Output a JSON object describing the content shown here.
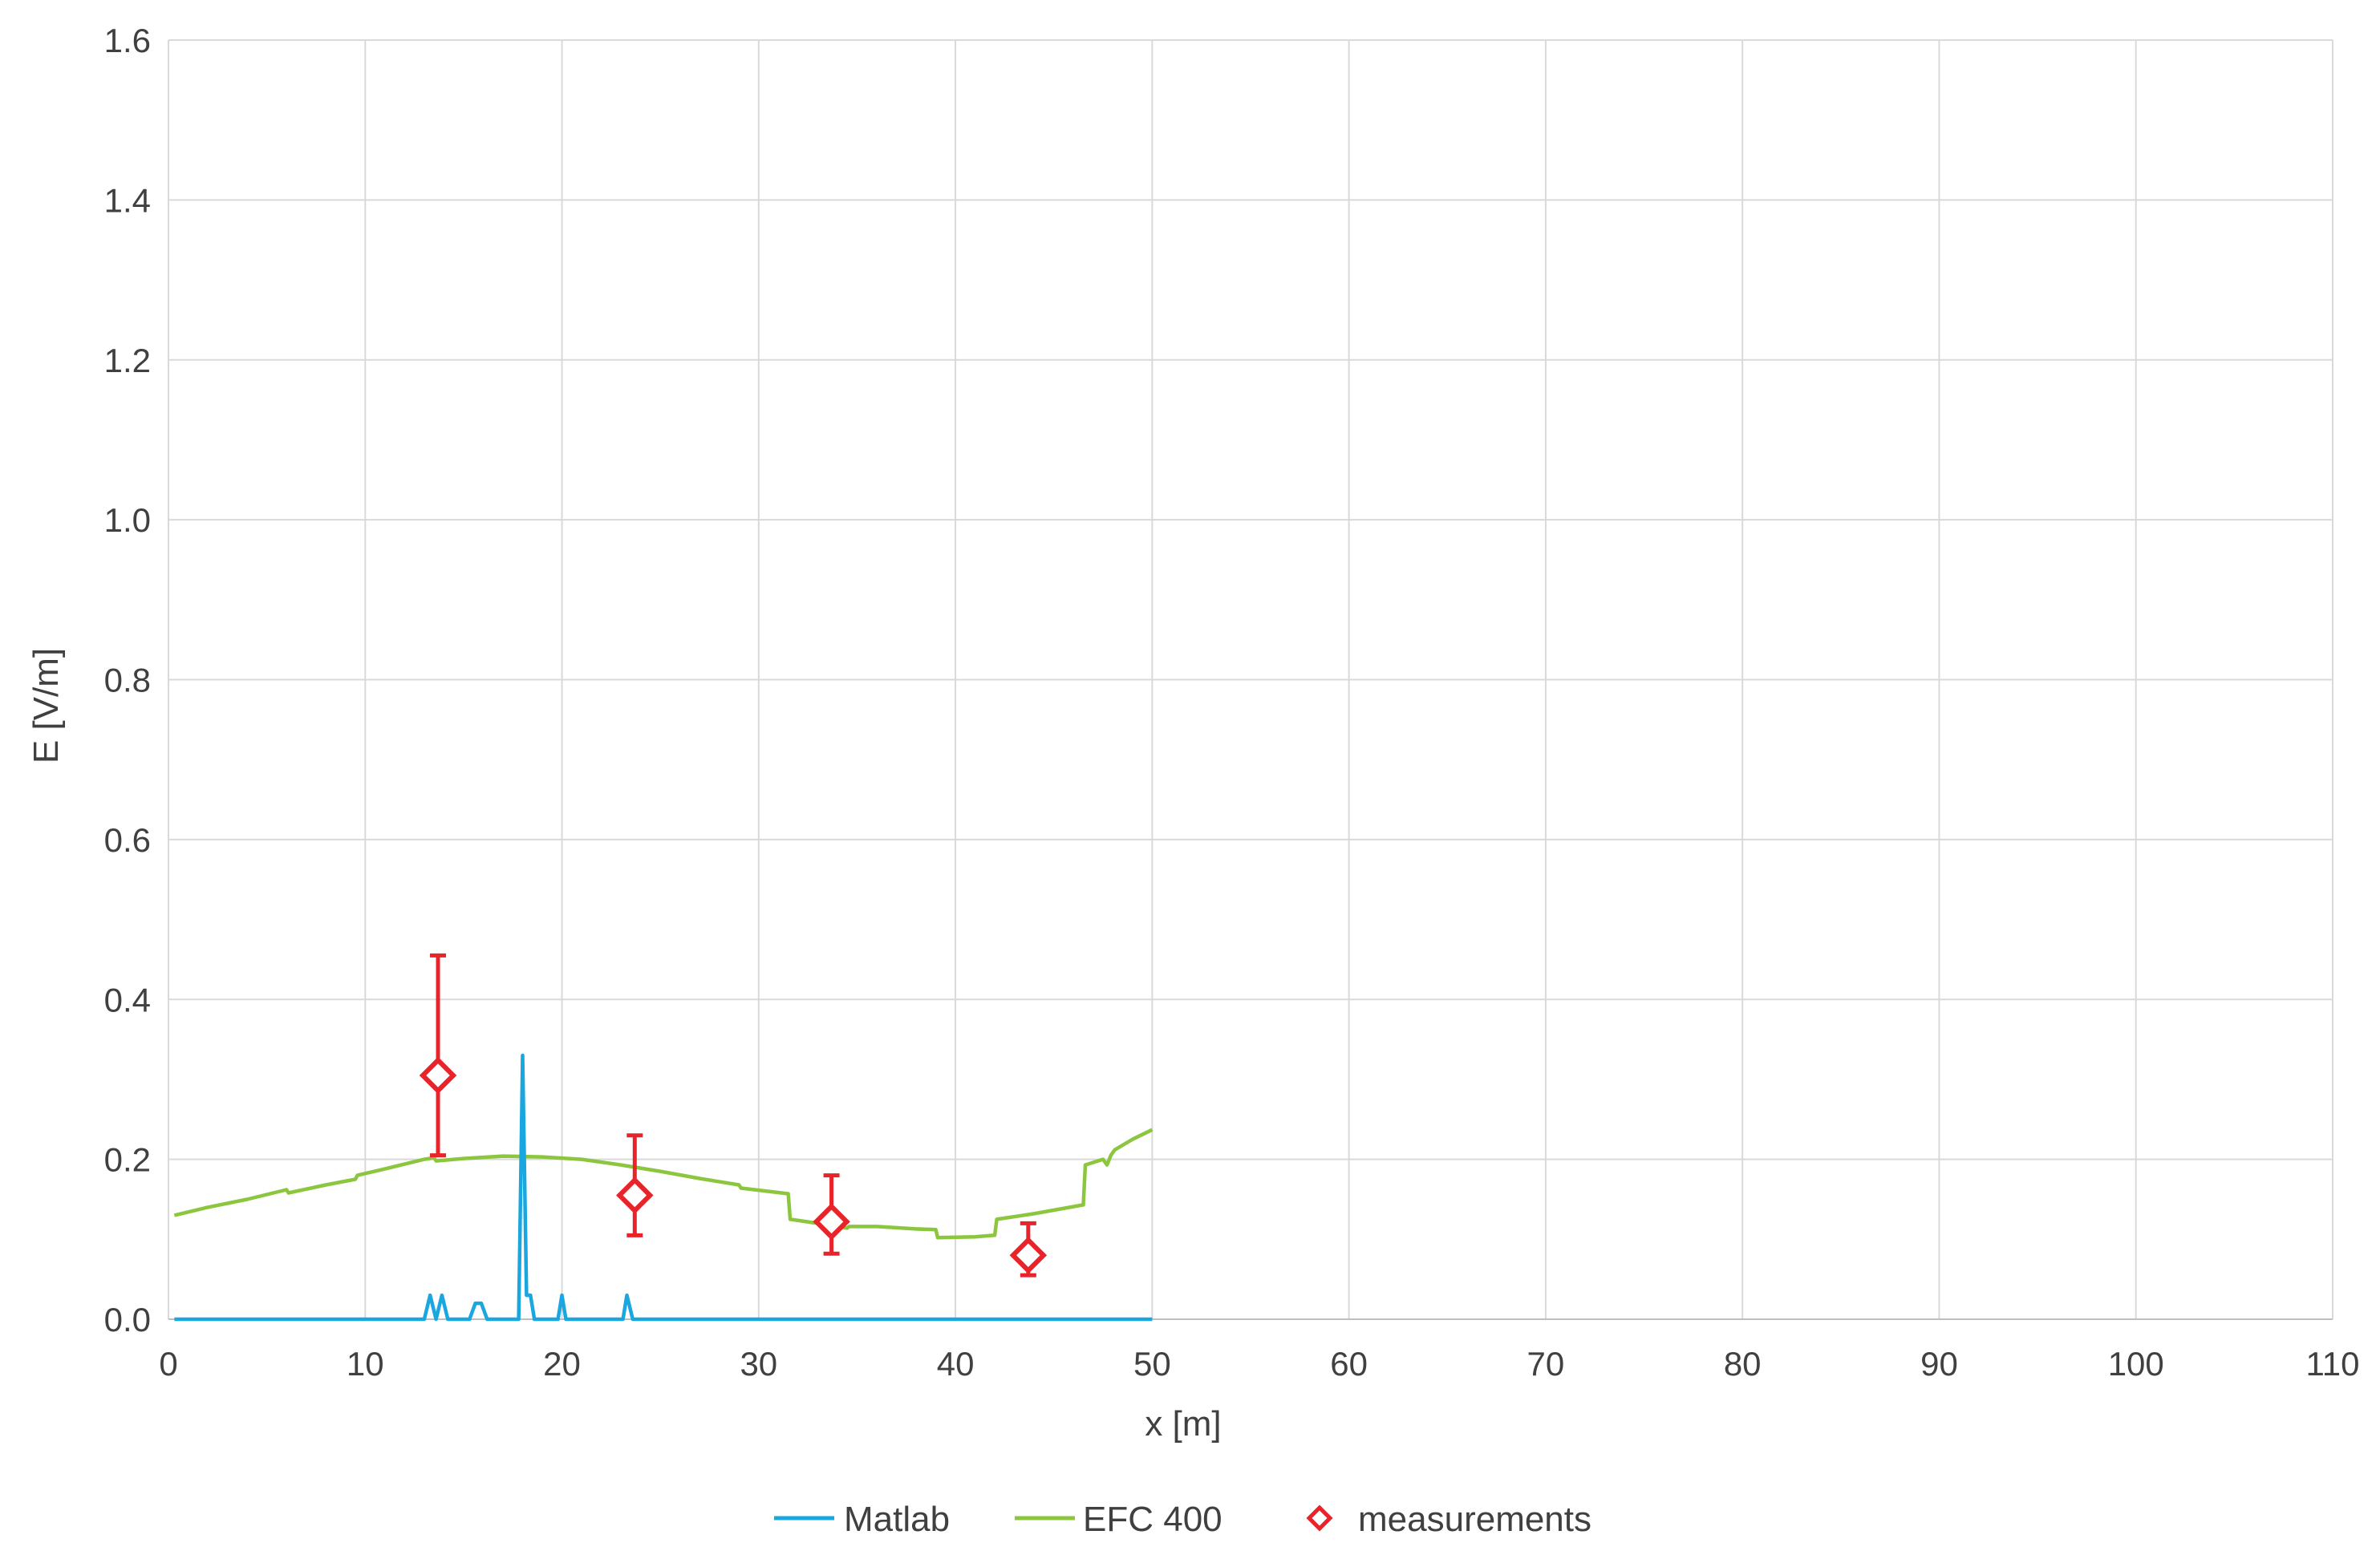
{
  "chart_data": {
    "type": "line",
    "title": "",
    "xlabel": "x [m]",
    "ylabel": "E [V/m]",
    "xlim": [
      0,
      110
    ],
    "ylim": [
      0,
      1.6
    ],
    "x_ticks": [
      0,
      10,
      20,
      30,
      40,
      50,
      60,
      70,
      80,
      90,
      100,
      110
    ],
    "y_ticks": [
      0,
      0.2,
      0.4,
      0.6,
      0.8,
      1.0,
      1.2,
      1.4,
      1.6
    ],
    "x_tick_labels": [
      "0",
      "10",
      "20",
      "30",
      "40",
      "50",
      "60",
      "70",
      "80",
      "90",
      "100",
      "110"
    ],
    "y_tick_labels": [
      "0.0",
      "0.2",
      "0.4",
      "0.6",
      "0.8",
      "1.0",
      "1.2",
      "1.4",
      "1.6"
    ],
    "grid": true,
    "legend_position": "bottom-center",
    "series": [
      {
        "name": "Matlab",
        "kind": "line",
        "color": "#1AA7E0",
        "x": [
          0.3,
          13.0,
          13.3,
          13.6,
          13.9,
          14.2,
          15.3,
          15.6,
          15.9,
          16.2,
          17.8,
          18.0,
          18.2,
          18.4,
          18.6,
          18.9,
          19.8,
          20.0,
          20.2,
          23.1,
          23.3,
          23.6,
          50
        ],
        "y": [
          0,
          0,
          0.03,
          0,
          0.03,
          0,
          0,
          0.02,
          0.02,
          0,
          0,
          0.33,
          0.03,
          0.03,
          0,
          0,
          0,
          0.03,
          0,
          0,
          0.03,
          0,
          0
        ]
      },
      {
        "name": "EFC 400",
        "kind": "line",
        "color": "#8CC63F",
        "x": [
          0.3,
          2,
          4,
          6,
          6.1,
          8,
          9.5,
          9.6,
          11,
          13,
          13.5,
          13.6,
          15,
          17,
          19,
          21,
          23,
          25,
          27,
          29,
          29.1,
          31.5,
          31.6,
          33,
          34.5,
          34.6,
          36,
          38,
          39,
          39.1,
          41,
          42,
          42.1,
          44,
          46.5,
          46.6,
          47.5,
          47.7,
          47.9,
          48.1,
          49,
          50
        ],
        "y": [
          0.13,
          0.14,
          0.15,
          0.162,
          0.158,
          0.168,
          0.175,
          0.18,
          0.188,
          0.2,
          0.202,
          0.198,
          0.201,
          0.204,
          0.203,
          0.2,
          0.193,
          0.185,
          0.176,
          0.168,
          0.164,
          0.157,
          0.125,
          0.12,
          0.114,
          0.116,
          0.116,
          0.113,
          0.112,
          0.102,
          0.103,
          0.105,
          0.125,
          0.132,
          0.143,
          0.193,
          0.2,
          0.193,
          0.205,
          0.212,
          0.225,
          0.237
        ]
      },
      {
        "name": "measurements",
        "kind": "scatter",
        "marker": "diamond",
        "color": "#E8232A",
        "x": [
          13.7,
          23.7,
          33.7,
          43.7
        ],
        "y": [
          0.305,
          0.155,
          0.122,
          0.08
        ],
        "err_low": [
          0.205,
          0.105,
          0.082,
          0.055
        ],
        "err_high": [
          0.455,
          0.23,
          0.18,
          0.12
        ]
      }
    ]
  }
}
